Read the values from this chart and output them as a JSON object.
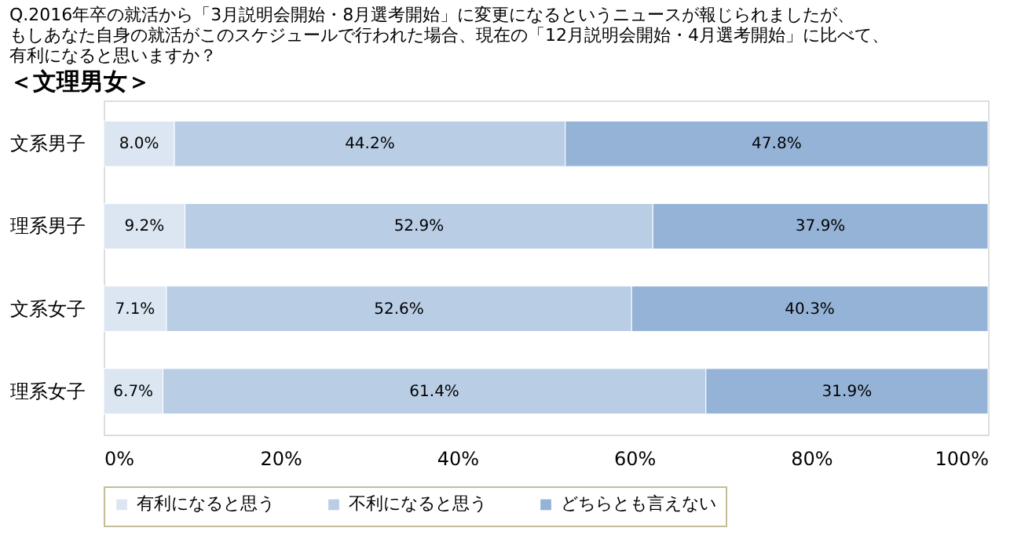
{
  "chart_data": {
    "type": "bar",
    "orientation": "horizontal",
    "stacked": true,
    "title": "Q.2016年卒の就活から「3月説明会開始・8月選考開始」に変更になるというニュースが報じられましたが、もしあなた自身の就活がこのスケジュールで行われた場合、現在の「12月説明会開始・4月選考開始」に比べて、有利になると思いますか？",
    "subtitle": "＜文理男女＞",
    "categories": [
      "文系男子",
      "理系男子",
      "文系女子",
      "理系女子"
    ],
    "series": [
      {
        "name": "有利になると思う",
        "color": "#dce6f2",
        "values": [
          8.0,
          9.2,
          7.1,
          6.7
        ],
        "value_labels": [
          "8.0%",
          "9.2%",
          "7.1%",
          "6.7%"
        ]
      },
      {
        "name": "不利になると思う",
        "color": "#b9cde5",
        "values": [
          44.2,
          52.9,
          52.6,
          61.4
        ],
        "value_labels": [
          "44.2%",
          "52.9%",
          "52.6%",
          "61.4%"
        ]
      },
      {
        "name": "どちらとも言えない",
        "color": "#95b3d7",
        "values": [
          47.8,
          37.9,
          40.3,
          31.9
        ],
        "value_labels": [
          "47.8%",
          "37.9%",
          "40.3%",
          "31.9%"
        ]
      }
    ],
    "xlim": [
      0,
      100
    ],
    "xticks": [
      {
        "value": 0,
        "label": "0%"
      },
      {
        "value": 20,
        "label": "20%"
      },
      {
        "value": 40,
        "label": "40%"
      },
      {
        "value": 60,
        "label": "60%"
      },
      {
        "value": 80,
        "label": "80%"
      },
      {
        "value": 100,
        "label": "100%"
      }
    ],
    "grid": false,
    "legend": "bottom"
  }
}
